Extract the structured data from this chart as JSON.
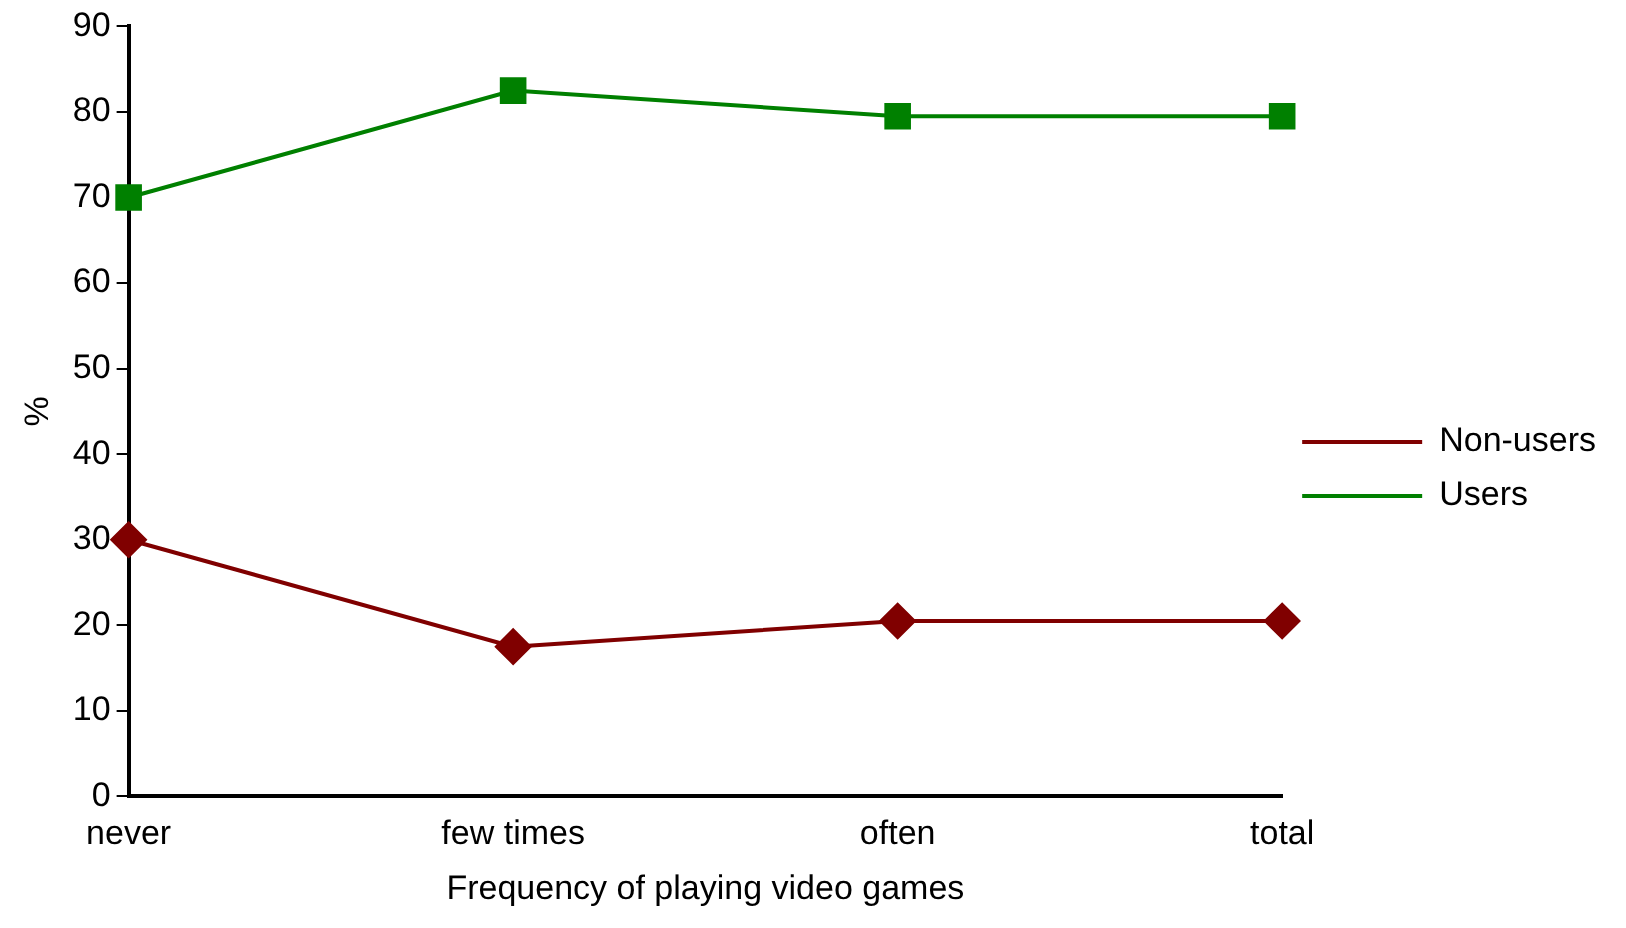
{
  "chart_data": {
    "type": "line",
    "xlabel": "Frequency of playing video games",
    "ylabel": "%",
    "categories": [
      "never",
      "few times",
      "often",
      "total"
    ],
    "series": [
      {
        "name": "Non-users",
        "color": "#800000",
        "values": [
          30,
          17.5,
          20.5,
          20.5
        ],
        "marker": "diamond"
      },
      {
        "name": "Users",
        "color": "#008000",
        "values": [
          70,
          82.5,
          79.5,
          79.5
        ],
        "marker": "square"
      }
    ],
    "ylim": [
      0,
      90
    ],
    "yticks": [
      0,
      10,
      20,
      30,
      40,
      50,
      60,
      70,
      80,
      90
    ],
    "grid": false,
    "legend": "right",
    "line_style": "solid"
  }
}
